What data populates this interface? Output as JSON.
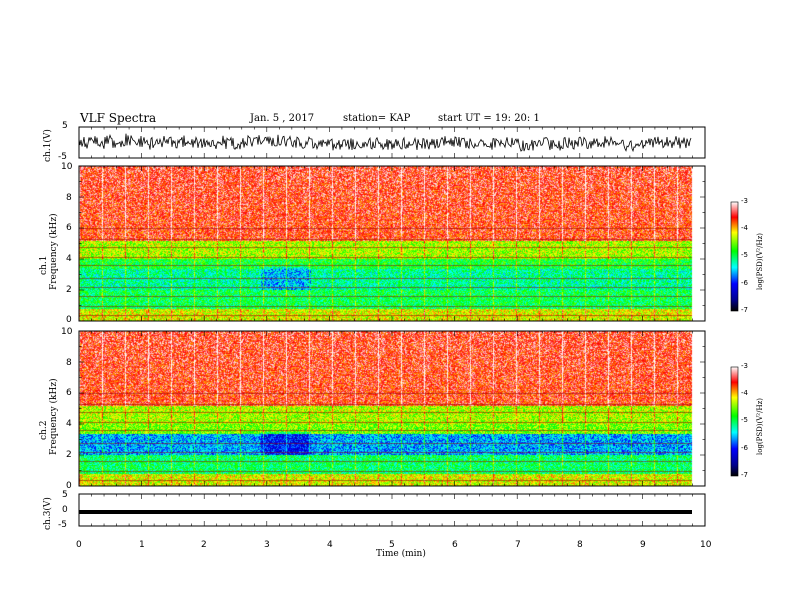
{
  "header": {
    "title": "VLF Spectra",
    "date": "Jan. 5 , 2017",
    "station": "station= KAP",
    "start": "start UT = 19: 20: 1"
  },
  "chart_data": [
    {
      "type": "line",
      "panel": "ch1-waveform",
      "ylabel": "ch.1(V)",
      "ylim": [
        -5,
        5
      ],
      "yticks": [
        "5",
        "-5"
      ],
      "xlim": [
        0,
        10
      ]
    },
    {
      "type": "heatmap",
      "panel": "ch1-spectrogram",
      "ylabel": "ch.1\nFrequency (kHz)",
      "ylabel_line1": "ch.1",
      "ylabel_line2": "Frequency (kHz)",
      "ylim": [
        0,
        10
      ],
      "yticks": [
        "0",
        "2",
        "4",
        "6",
        "8",
        "10"
      ],
      "xlim": [
        0,
        10
      ],
      "colorbar": {
        "label": "log(PSD)(V²/Hz)",
        "range": [
          -7,
          -3
        ],
        "ticks": [
          "-3",
          "-4",
          "-5",
          "-6",
          "-7"
        ]
      }
    },
    {
      "type": "heatmap",
      "panel": "ch2-spectrogram",
      "ylabel": "ch.2\nFrequency (kHz)",
      "ylabel_line1": "ch.2",
      "ylabel_line2": "Frequency (kHz)",
      "ylim": [
        0,
        10
      ],
      "yticks": [
        "0",
        "2",
        "4",
        "6",
        "8",
        "10"
      ],
      "xlim": [
        0,
        10
      ],
      "colorbar": {
        "label": "log(PSD)(V²/Hz)",
        "range": [
          -7,
          -3
        ],
        "ticks": [
          "-3",
          "-4",
          "-5",
          "-6",
          "-7"
        ]
      }
    },
    {
      "type": "line",
      "panel": "ch3-waveform",
      "ylabel": "ch.3(V)",
      "ylim": [
        -5,
        5
      ],
      "yticks": [
        "5",
        "0",
        "-5"
      ],
      "xlim": [
        0,
        10
      ],
      "xlabel": "Time (min)",
      "xticks": [
        "0",
        "1",
        "2",
        "3",
        "4",
        "5",
        "6",
        "7",
        "8",
        "9",
        "10"
      ]
    }
  ]
}
